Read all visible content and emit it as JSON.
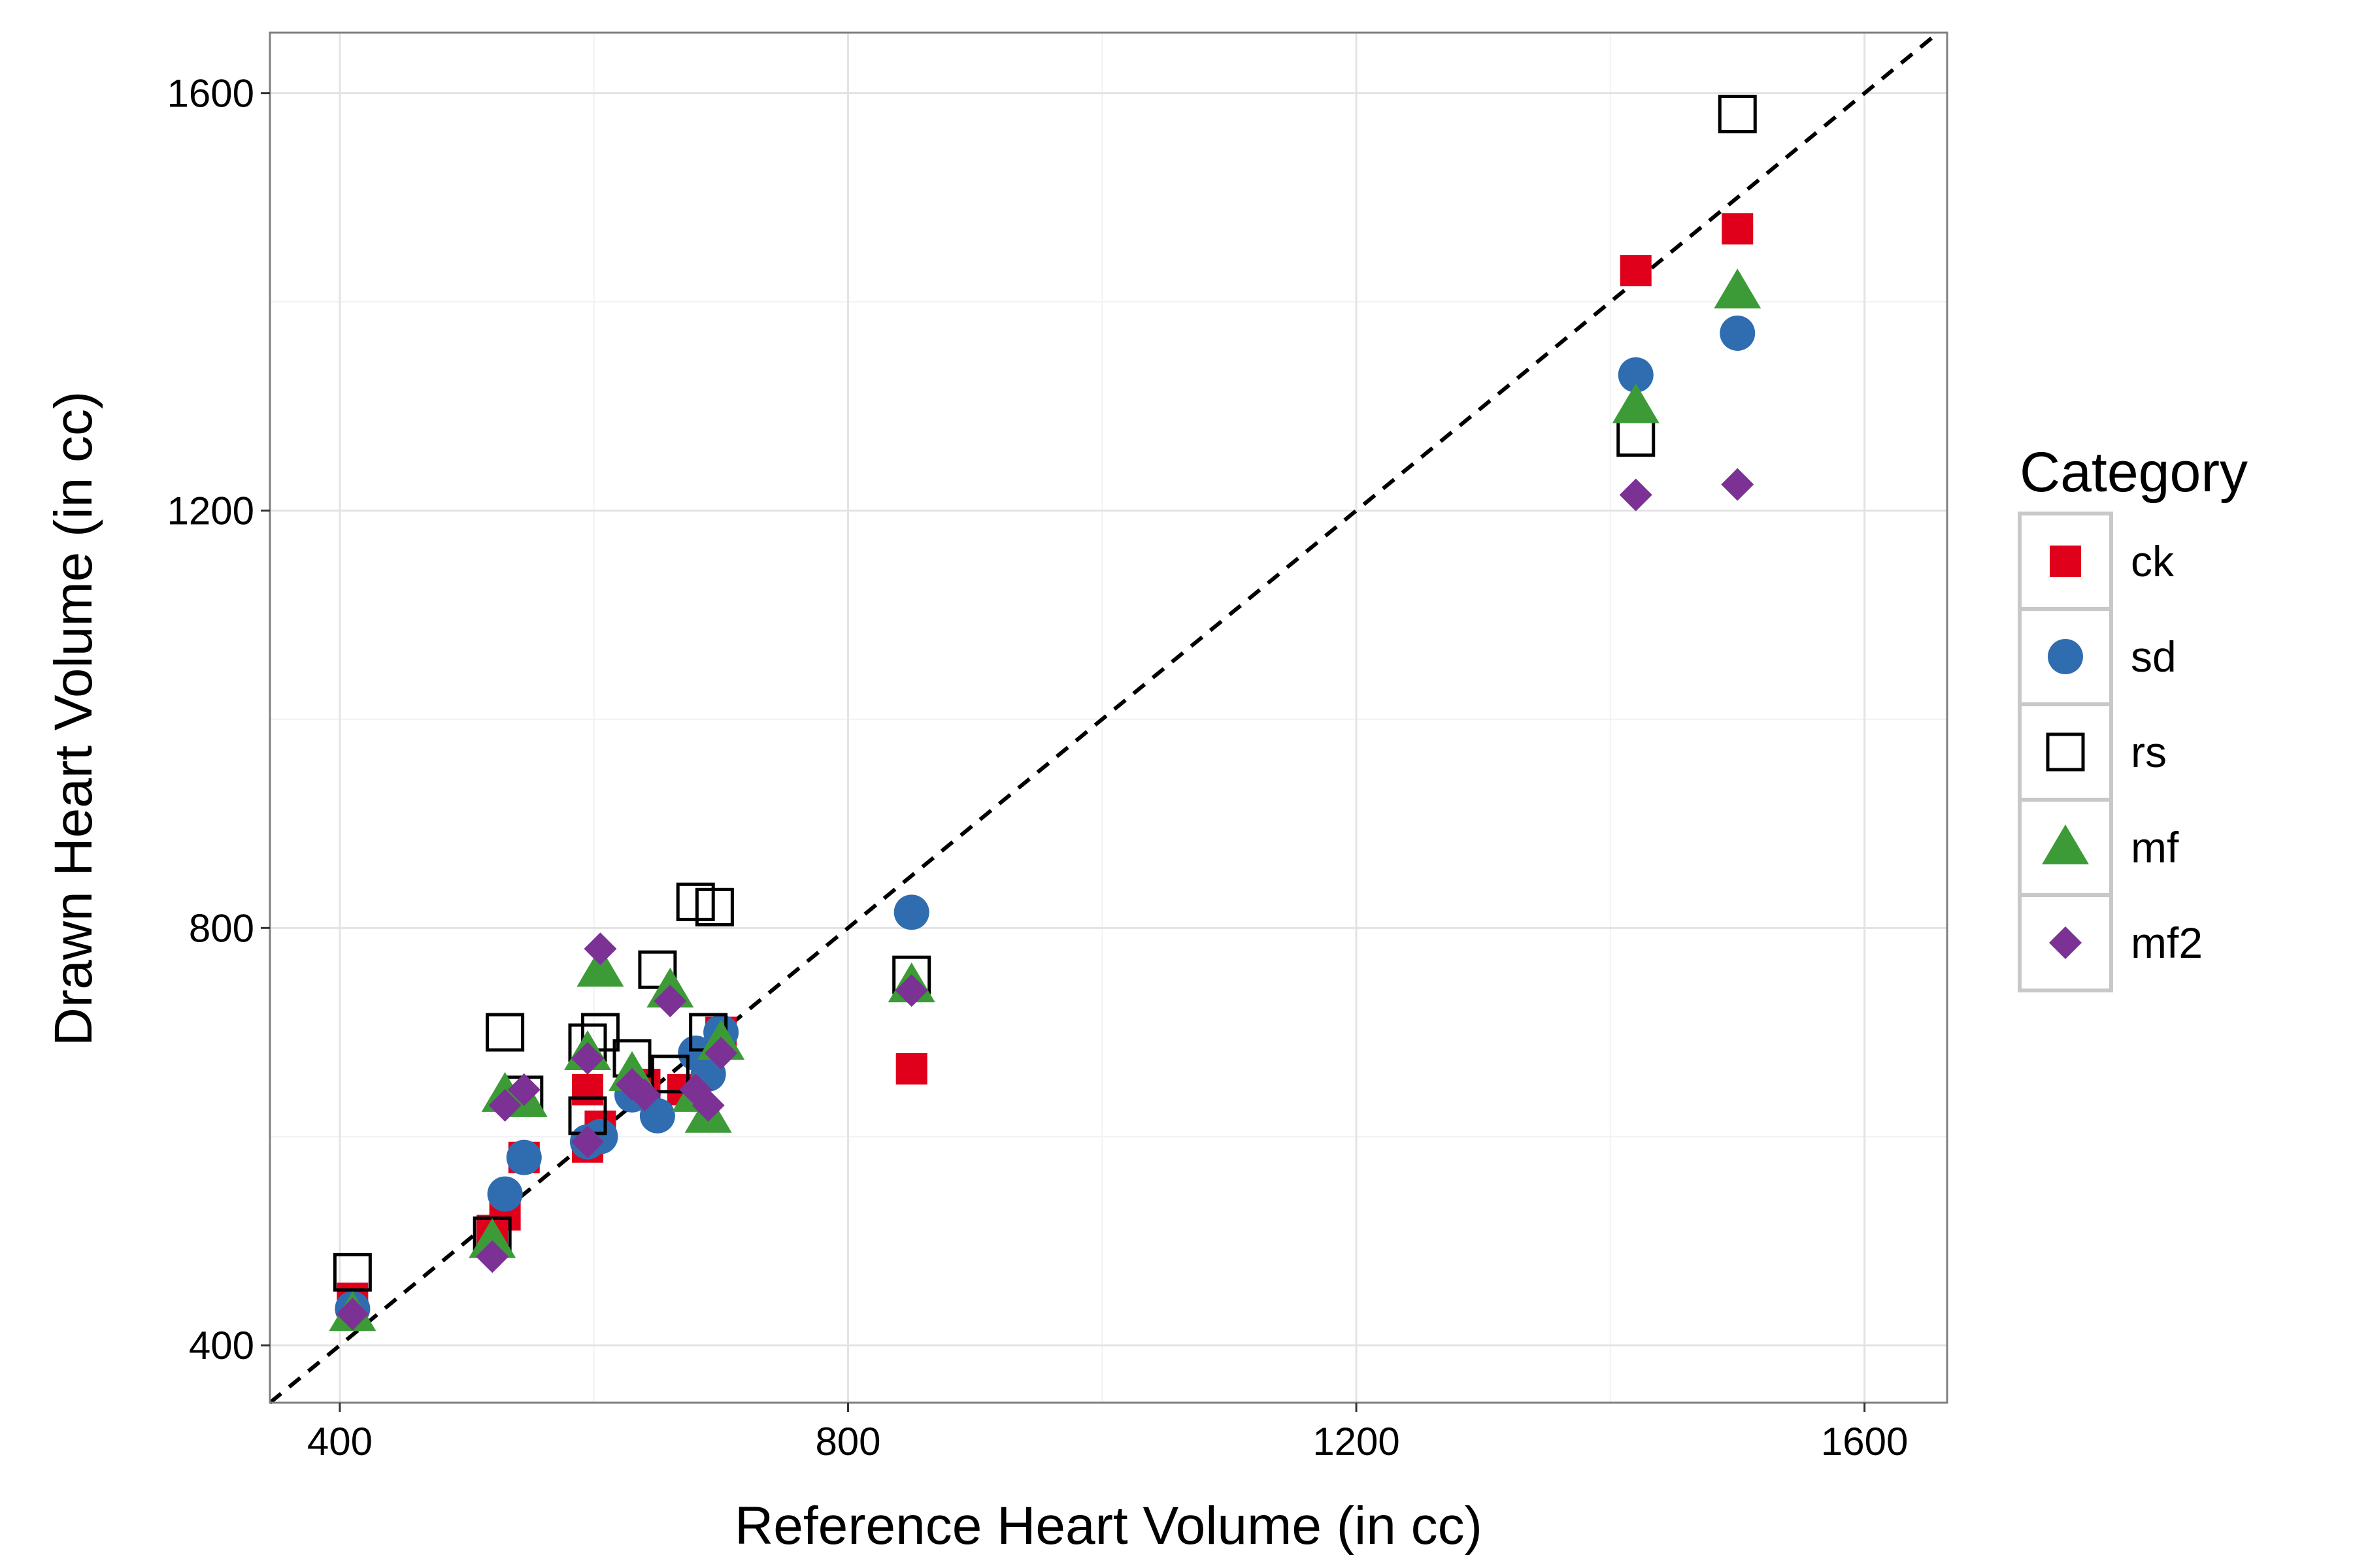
{
  "chart_data": {
    "type": "scatter",
    "xlabel": "Reference Heart Volume (in cc)",
    "ylabel": "Drawn Heart Volume (in cc)",
    "xlim": [
      345,
      1665
    ],
    "ylim": [
      345,
      1658
    ],
    "xticks": [
      400,
      800,
      1200,
      1600
    ],
    "yticks": [
      400,
      800,
      1200,
      1600
    ],
    "grid": true,
    "reference_line": "identity (y = x), dashed black",
    "legend": {
      "title": "Category",
      "position": "right"
    },
    "series": [
      {
        "name": "ck",
        "marker": "square-filled",
        "color": "#e0001b",
        "points": [
          [
            410,
            445
          ],
          [
            520,
            510
          ],
          [
            530,
            525
          ],
          [
            545,
            580
          ],
          [
            595,
            590
          ],
          [
            595,
            645
          ],
          [
            605,
            610
          ],
          [
            640,
            650
          ],
          [
            670,
            645
          ],
          [
            690,
            670
          ],
          [
            700,
            700
          ],
          [
            850,
            665
          ],
          [
            1420,
            1430
          ],
          [
            1500,
            1470
          ]
        ]
      },
      {
        "name": "sd",
        "marker": "circle",
        "color": "#2f6db0",
        "points": [
          [
            410,
            435
          ],
          [
            530,
            545
          ],
          [
            545,
            580
          ],
          [
            595,
            595
          ],
          [
            605,
            600
          ],
          [
            630,
            640
          ],
          [
            650,
            620
          ],
          [
            680,
            680
          ],
          [
            690,
            660
          ],
          [
            700,
            700
          ],
          [
            850,
            815
          ],
          [
            1420,
            1330
          ],
          [
            1500,
            1370
          ]
        ]
      },
      {
        "name": "rs",
        "marker": "square-open",
        "color": "#000000",
        "points": [
          [
            410,
            470
          ],
          [
            520,
            505
          ],
          [
            530,
            700
          ],
          [
            545,
            640
          ],
          [
            595,
            690
          ],
          [
            595,
            620
          ],
          [
            605,
            700
          ],
          [
            630,
            675
          ],
          [
            650,
            760
          ],
          [
            660,
            660
          ],
          [
            680,
            825
          ],
          [
            695,
            820
          ],
          [
            690,
            700
          ],
          [
            850,
            755
          ],
          [
            1420,
            1270
          ],
          [
            1500,
            1580
          ]
        ]
      },
      {
        "name": "mf",
        "marker": "triangle",
        "color": "#3c9b37",
        "points": [
          [
            410,
            430
          ],
          [
            520,
            500
          ],
          [
            530,
            640
          ],
          [
            545,
            635
          ],
          [
            595,
            680
          ],
          [
            605,
            760
          ],
          [
            630,
            660
          ],
          [
            660,
            740
          ],
          [
            680,
            640
          ],
          [
            690,
            620
          ],
          [
            700,
            690
          ],
          [
            850,
            745
          ],
          [
            1420,
            1300
          ],
          [
            1500,
            1410
          ]
        ]
      },
      {
        "name": "mf2",
        "marker": "diamond",
        "color": "#7b3294",
        "points": [
          [
            410,
            430
          ],
          [
            520,
            485
          ],
          [
            530,
            630
          ],
          [
            545,
            645
          ],
          [
            595,
            595
          ],
          [
            595,
            675
          ],
          [
            605,
            780
          ],
          [
            630,
            650
          ],
          [
            640,
            640
          ],
          [
            660,
            730
          ],
          [
            680,
            645
          ],
          [
            690,
            630
          ],
          [
            700,
            680
          ],
          [
            850,
            740
          ],
          [
            1420,
            1215
          ],
          [
            1500,
            1225
          ]
        ]
      }
    ]
  }
}
